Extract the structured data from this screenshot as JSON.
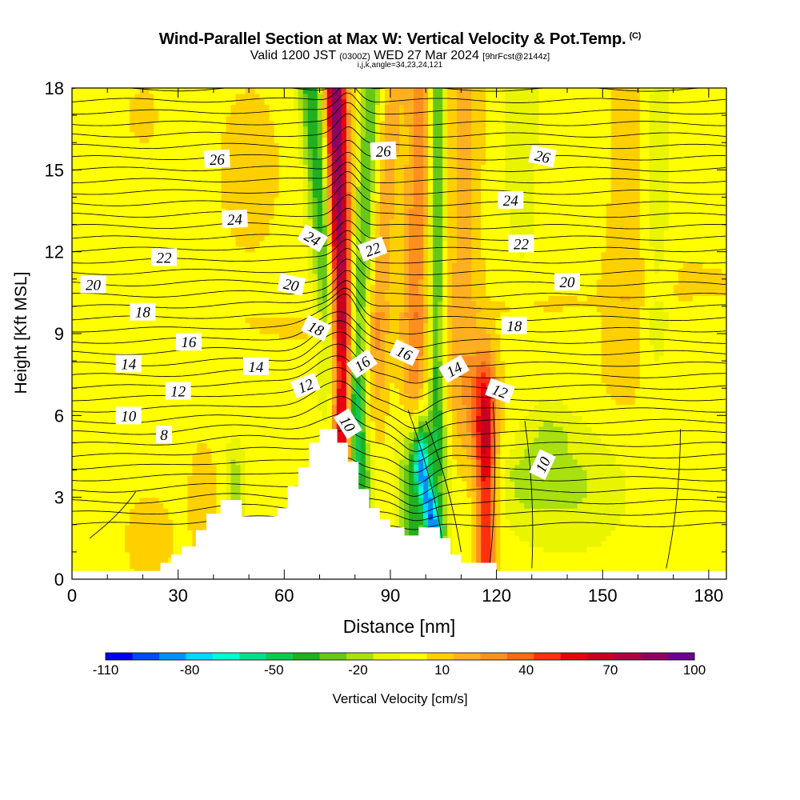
{
  "header": {
    "title": "Wind-Parallel Section at Max W: Vertical Velocity & Pot.Temp.",
    "title_tag": "(C)",
    "subtitle_valid": "Valid 1200 JST",
    "subtitle_zulu": "(0300Z)",
    "subtitle_date": "WED 27 Mar 2024",
    "subtitle_fcst": "[9hrFcst@2144z]",
    "subtitle2": "i,j,k,angle=34,23,24,121"
  },
  "chart_data": {
    "type": "heatmap",
    "xlabel": "Distance [nm]",
    "ylabel": "Height [Kft MSL]",
    "xlim": [
      0,
      185
    ],
    "ylim": [
      0,
      18
    ],
    "x_ticks": [
      0,
      30,
      60,
      90,
      120,
      150,
      180
    ],
    "y_ticks": [
      0,
      3,
      6,
      9,
      12,
      15,
      18
    ],
    "x_minor_step": 10,
    "y_minor_step": 1,
    "terrain": [
      [
        0,
        0.3
      ],
      [
        25,
        0.3
      ],
      [
        25,
        0.6
      ],
      [
        28,
        0.6
      ],
      [
        28,
        0.9
      ],
      [
        31,
        0.9
      ],
      [
        31,
        1.2
      ],
      [
        35,
        1.2
      ],
      [
        35,
        1.8
      ],
      [
        38,
        1.8
      ],
      [
        38,
        2.4
      ],
      [
        42,
        2.4
      ],
      [
        42,
        2.9
      ],
      [
        48,
        2.9
      ],
      [
        48,
        2.3
      ],
      [
        58,
        2.3
      ],
      [
        58,
        2.6
      ],
      [
        61,
        2.6
      ],
      [
        61,
        3.4
      ],
      [
        64,
        3.4
      ],
      [
        64,
        4.1
      ],
      [
        67,
        4.1
      ],
      [
        67,
        5.0
      ],
      [
        70,
        5.0
      ],
      [
        70,
        5.5
      ],
      [
        75,
        5.5
      ],
      [
        75,
        5.0
      ],
      [
        78,
        5.0
      ],
      [
        78,
        4.3
      ],
      [
        81,
        4.3
      ],
      [
        81,
        3.3
      ],
      [
        84,
        3.3
      ],
      [
        84,
        2.6
      ],
      [
        87,
        2.6
      ],
      [
        87,
        2.2
      ],
      [
        90,
        2.2
      ],
      [
        90,
        1.9
      ],
      [
        94,
        1.9
      ],
      [
        94,
        1.6
      ],
      [
        98,
        1.6
      ],
      [
        98,
        1.9
      ],
      [
        104,
        1.9
      ],
      [
        104,
        1.5
      ],
      [
        107,
        1.5
      ],
      [
        107,
        0.9
      ],
      [
        110,
        0.9
      ],
      [
        110,
        0.6
      ],
      [
        120,
        0.6
      ],
      [
        120,
        0.3
      ],
      [
        185,
        0.3
      ]
    ],
    "vertical_velocity": {
      "name": "Vertical Velocity [cm/s]",
      "background": 5,
      "features": [
        {
          "x0": 76.5,
          "x1": 74.5,
          "y0": 6.5,
          "y1": 18.0,
          "sx": 2.2,
          "sy": 2.2,
          "amp": 95
        },
        {
          "x0": 74.0,
          "x1": 67.5,
          "y0": 8.5,
          "y1": 18.0,
          "sx": 2.4,
          "sy": 2.2,
          "amp": -45
        },
        {
          "x0": 80.0,
          "x1": 84.5,
          "y0": 7.0,
          "y1": 18.0,
          "sx": 1.8,
          "sy": 2.5,
          "amp": -35
        },
        {
          "x0": 86.5,
          "x1": 91.0,
          "y0": 9.0,
          "y1": 18.0,
          "sx": 2.0,
          "sy": 2.5,
          "amp": 22
        },
        {
          "x0": 96.5,
          "x1": 98.0,
          "y0": 6.5,
          "y1": 18.0,
          "sx": 2.5,
          "sy": 2.5,
          "amp": 30
        },
        {
          "x0": 103.0,
          "x1": 103.5,
          "y0": 7.5,
          "y1": 18.0,
          "sx": 1.4,
          "sy": 2.5,
          "amp": -40
        },
        {
          "x0": 110.0,
          "x1": 111.0,
          "y0": 8.0,
          "y1": 18.0,
          "sx": 3.5,
          "sy": 2.5,
          "amp": 18
        },
        {
          "x0": 82.0,
          "x1": 80.0,
          "y0": 3.5,
          "y1": 6.0,
          "sx": 2.0,
          "sy": 1.6,
          "amp": -40
        },
        {
          "x0": 96.0,
          "x1": 96.0,
          "y0": 1.5,
          "y1": 4.5,
          "sx": 2.5,
          "sy": 1.3,
          "amp": -45
        },
        {
          "x0": 102.0,
          "x1": 99.0,
          "y0": 1.8,
          "y1": 4.0,
          "sx": 1.6,
          "sy": 1.2,
          "amp": -80
        },
        {
          "x0": 104.0,
          "x1": 104.0,
          "y0": 2.5,
          "y1": 4.5,
          "sx": 2.0,
          "sy": 1.5,
          "amp": -25
        },
        {
          "x0": 117.0,
          "x1": 117.0,
          "y0": 1.5,
          "y1": 5.5,
          "sx": 2.0,
          "sy": 1.8,
          "amp": 58
        },
        {
          "x0": 115.0,
          "x1": 115.0,
          "y0": 5.5,
          "y1": 7.0,
          "sx": 4.0,
          "sy": 1.0,
          "amp": 18
        },
        {
          "x0": 140.0,
          "x1": 140.0,
          "y0": 3.5,
          "y1": 3.5,
          "sx": 12.0,
          "sy": 1.6,
          "amp": -18
        },
        {
          "x0": 128.0,
          "x1": 135.0,
          "y0": 4.0,
          "y1": 5.0,
          "sx": 4.0,
          "sy": 1.0,
          "amp": -12
        },
        {
          "x0": 155.0,
          "x1": 157.0,
          "y0": 9.0,
          "y1": 18.0,
          "sx": 8.0,
          "sy": 3.0,
          "amp": 10
        },
        {
          "x0": 165.0,
          "x1": 166.0,
          "y0": 11.0,
          "y1": 18.0,
          "sx": 3.0,
          "sy": 3.0,
          "amp": -15
        },
        {
          "x0": 147.0,
          "x1": 147.0,
          "y0": 13.0,
          "y1": 18.0,
          "sx": 4.0,
          "sy": 3.5,
          "amp": -8
        },
        {
          "x0": 127.0,
          "x1": 127.0,
          "y0": 15.0,
          "y1": 18.0,
          "sx": 3.0,
          "sy": 2.5,
          "amp": -14
        },
        {
          "x0": 46.0,
          "x1": 46.0,
          "y0": 3.5,
          "y1": 3.5,
          "sx": 2.0,
          "sy": 1.0,
          "amp": -22
        },
        {
          "x0": 37.0,
          "x1": 37.0,
          "y0": 3.0,
          "y1": 3.0,
          "sx": 3.0,
          "sy": 1.5,
          "amp": 12
        },
        {
          "x0": 22.0,
          "x1": 22.0,
          "y0": 1.5,
          "y1": 1.5,
          "sx": 5.0,
          "sy": 1.2,
          "amp": 12
        },
        {
          "x0": 50.0,
          "x1": 50.0,
          "y0": 15.0,
          "y1": 15.0,
          "sx": 7.0,
          "sy": 2.5,
          "amp": 10
        },
        {
          "x0": 20.0,
          "x1": 20.0,
          "y0": 17.0,
          "y1": 17.0,
          "sx": 4.0,
          "sy": 1.0,
          "amp": 8
        },
        {
          "x0": 75.0,
          "x1": 175.0,
          "y0": 9.5,
          "y1": 10.5,
          "sx": 30.0,
          "sy": 1.5,
          "amp": 6
        }
      ]
    },
    "potential_temperature": {
      "name": "Pot.Temp. (C)",
      "contour_labels": [
        {
          "text": "26",
          "x": 41,
          "y": 15.4,
          "angle": -3
        },
        {
          "text": "26",
          "x": 88,
          "y": 15.7,
          "angle": -3
        },
        {
          "text": "26",
          "x": 133,
          "y": 15.5,
          "angle": 12
        },
        {
          "text": "24",
          "x": 46,
          "y": 13.2,
          "angle": -3
        },
        {
          "text": "24",
          "x": 68,
          "y": 12.5,
          "angle": 30
        },
        {
          "text": "24",
          "x": 124,
          "y": 13.9,
          "angle": 0
        },
        {
          "text": "22",
          "x": 26,
          "y": 11.8,
          "angle": 0
        },
        {
          "text": "22",
          "x": 85,
          "y": 12.1,
          "angle": -20
        },
        {
          "text": "22",
          "x": 127,
          "y": 12.3,
          "angle": 0
        },
        {
          "text": "20",
          "x": 6,
          "y": 10.8,
          "angle": 0
        },
        {
          "text": "20",
          "x": 62,
          "y": 10.8,
          "angle": 12
        },
        {
          "text": "20",
          "x": 140,
          "y": 10.9,
          "angle": 0
        },
        {
          "text": "18",
          "x": 20,
          "y": 9.8,
          "angle": 0
        },
        {
          "text": "18",
          "x": 69,
          "y": 9.2,
          "angle": 25
        },
        {
          "text": "18",
          "x": 125,
          "y": 9.3,
          "angle": 0
        },
        {
          "text": "16",
          "x": 33,
          "y": 8.7,
          "angle": 0
        },
        {
          "text": "16",
          "x": 82,
          "y": 7.9,
          "angle": -35
        },
        {
          "text": "16",
          "x": 94,
          "y": 8.3,
          "angle": 25
        },
        {
          "text": "14",
          "x": 16,
          "y": 7.9,
          "angle": 0
        },
        {
          "text": "14",
          "x": 52,
          "y": 7.8,
          "angle": 0
        },
        {
          "text": "14",
          "x": 108,
          "y": 7.7,
          "angle": -30
        },
        {
          "text": "12",
          "x": 30,
          "y": 6.9,
          "angle": 0
        },
        {
          "text": "12",
          "x": 66,
          "y": 7.1,
          "angle": -22
        },
        {
          "text": "12",
          "x": 121,
          "y": 6.9,
          "angle": 20
        },
        {
          "text": "10",
          "x": 16,
          "y": 6.0,
          "angle": 0
        },
        {
          "text": "10",
          "x": 78,
          "y": 5.7,
          "angle": 58
        },
        {
          "text": "10",
          "x": 133,
          "y": 4.2,
          "angle": -65
        },
        {
          "text": "8",
          "x": 26,
          "y": 5.3,
          "angle": 0
        }
      ]
    }
  },
  "colorbar": {
    "title": "Vertical Velocity [cm/s]",
    "boundaries": [
      -110,
      -100,
      -90,
      -80,
      -70,
      -60,
      -50,
      -40,
      -30,
      -20,
      -10,
      0,
      10,
      20,
      30,
      40,
      50,
      60,
      70,
      80,
      90,
      100
    ],
    "tick_labels": [
      "-110",
      "-80",
      "-50",
      "-20",
      "10",
      "40",
      "70",
      "100"
    ],
    "colors": [
      "#0000ee",
      "#0048ff",
      "#0090ff",
      "#00d8ff",
      "#00ffd0",
      "#00e08c",
      "#10c850",
      "#20b020",
      "#68c818",
      "#a8e010",
      "#e8f400",
      "#ffff00",
      "#ffd000",
      "#ffb020",
      "#ff9020",
      "#ff6818",
      "#ff3010",
      "#e80010",
      "#c80020",
      "#b00040",
      "#900060",
      "#6a0090"
    ]
  }
}
